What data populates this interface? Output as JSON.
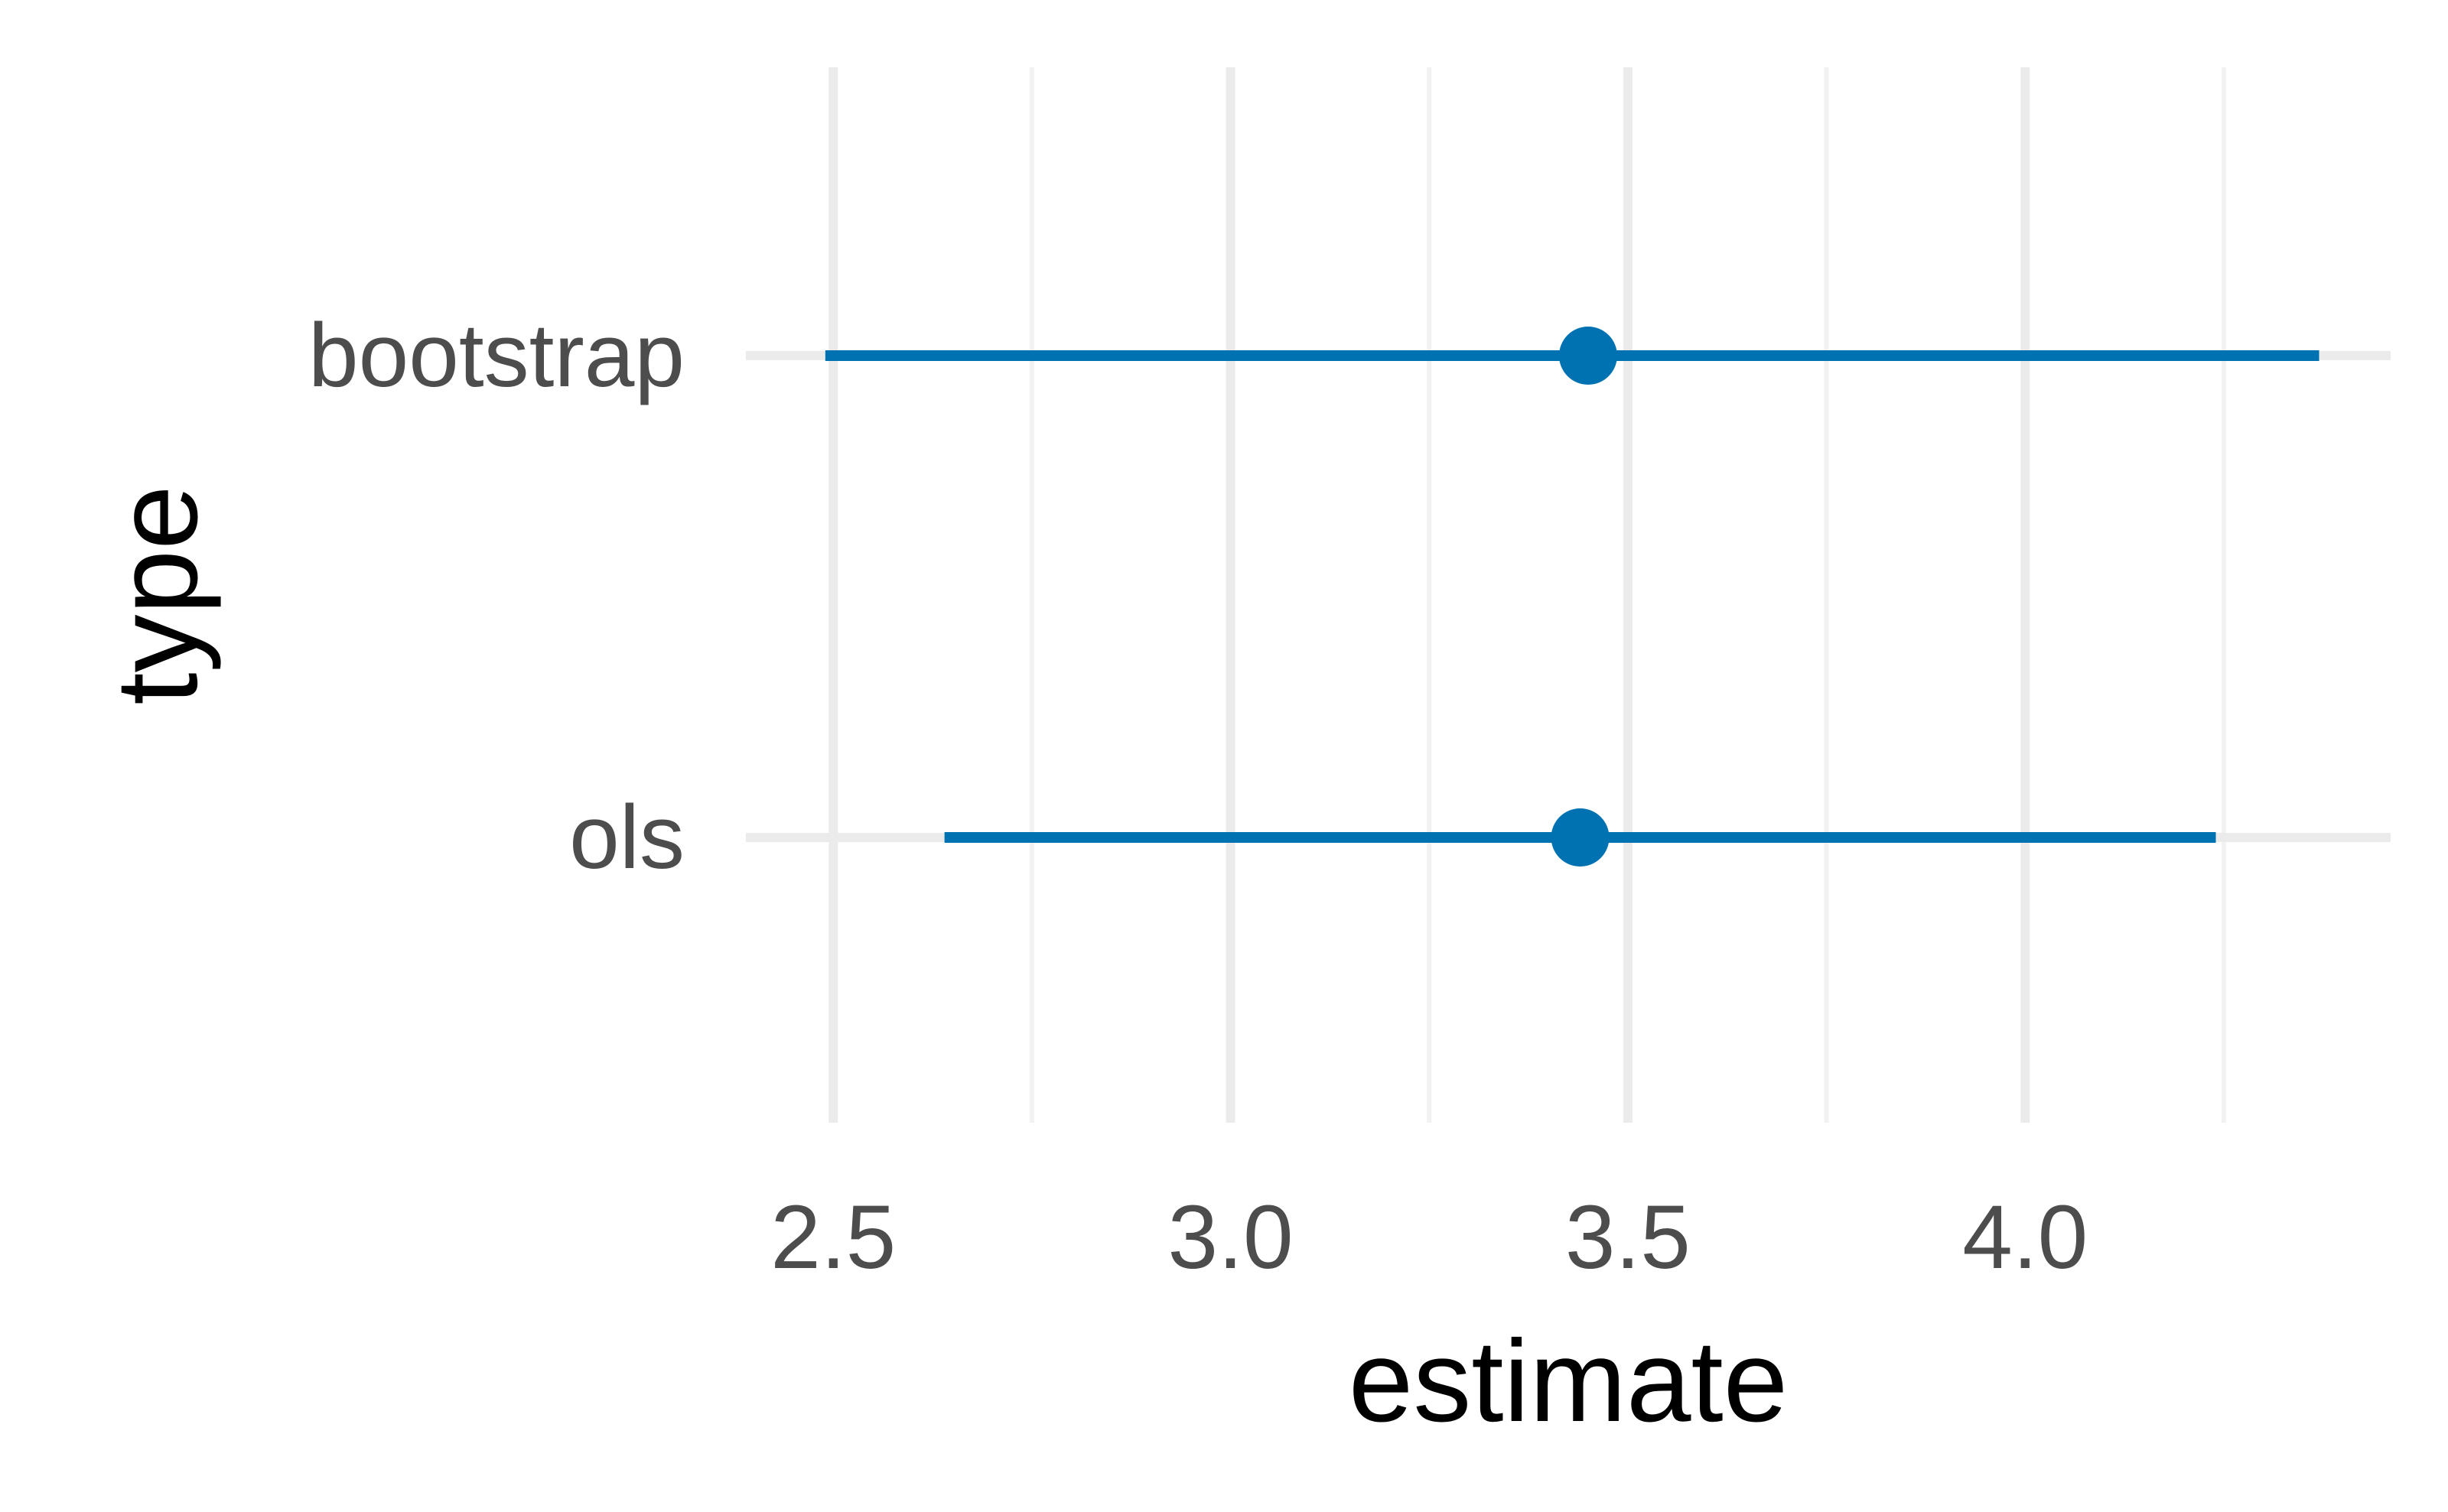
{
  "chart_data": {
    "type": "pointrange",
    "orientation": "horizontal",
    "xlabel": "estimate",
    "ylabel": "type",
    "xlim": [
      2.39,
      4.46
    ],
    "x_major_ticks": [
      2.5,
      3.0,
      3.5,
      4.0
    ],
    "x_tick_labels": [
      "2.5",
      "3.0",
      "3.5",
      "4.0"
    ],
    "x_minor_ticks": [
      2.75,
      3.25,
      3.75,
      4.25
    ],
    "categories": [
      "bootstrap",
      "ols"
    ],
    "estimates": [
      {
        "type": "bootstrap",
        "estimate": 3.45,
        "low": 2.49,
        "high": 4.37
      },
      {
        "type": "ols",
        "estimate": 3.44,
        "low": 2.64,
        "high": 4.24
      }
    ],
    "grid": true,
    "legend": "none",
    "colors": {
      "series": "#0072B2",
      "grid_major": "#EBEBEB",
      "grid_minor": "#F2F2F2",
      "tick_text": "#4D4D4D",
      "title_text": "#000000"
    }
  }
}
